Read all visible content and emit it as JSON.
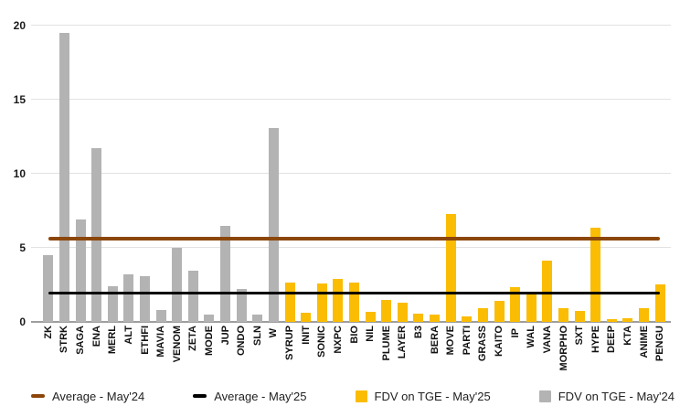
{
  "chart_data": {
    "type": "bar",
    "title": "",
    "xlabel": "",
    "ylabel": "",
    "ylim": [
      0,
      20
    ],
    "yticks": [
      0,
      5,
      10,
      15,
      20
    ],
    "grid": true,
    "legend_position": "bottom",
    "categories": [
      "ZK",
      "STRK",
      "SAGA",
      "ENA",
      "MERL",
      "ALT",
      "ETHFI",
      "MAVIA",
      "VENOM",
      "ZETA",
      "MODE",
      "JUP",
      "ONDO",
      "SLN",
      "W",
      "SYRUP",
      "INIT",
      "SONIC",
      "NXPC",
      "BIO",
      "NIL",
      "PLUME",
      "LAYER",
      "B3",
      "BERA",
      "MOVE",
      "PARTI",
      "GRASS",
      "KAITO",
      "IP",
      "WAL",
      "VANA",
      "MORPHO",
      "SXT",
      "HYPE",
      "DEEP",
      "KTA",
      "ANIME",
      "PENGU"
    ],
    "series": [
      {
        "name": "FDV on TGE - May'24",
        "color": "#B3B3B3",
        "values": [
          4.5,
          19.5,
          6.9,
          11.7,
          2.4,
          3.2,
          3.1,
          0.8,
          5.0,
          3.45,
          0.5,
          6.5,
          2.2,
          0.5,
          13.1,
          null,
          null,
          null,
          null,
          null,
          null,
          null,
          null,
          null,
          null,
          null,
          null,
          null,
          null,
          null,
          null,
          null,
          null,
          null,
          null,
          null,
          null,
          null,
          null
        ]
      },
      {
        "name": "FDV on TGE - May'25",
        "color": "#FBBC04",
        "values": [
          null,
          null,
          null,
          null,
          null,
          null,
          null,
          null,
          null,
          null,
          null,
          null,
          null,
          null,
          null,
          2.65,
          0.6,
          2.55,
          2.9,
          2.65,
          0.65,
          1.5,
          1.3,
          0.55,
          0.5,
          7.3,
          0.35,
          0.9,
          1.4,
          2.35,
          1.9,
          4.1,
          0.9,
          0.75,
          6.35,
          0.2,
          0.25,
          0.9,
          2.5
        ]
      }
    ],
    "avg_lines": [
      {
        "name": "Average - May'24",
        "color": "#8C460A",
        "value": 5.6,
        "thickness": 4
      },
      {
        "name": "Average - May'25",
        "color": "#000000",
        "value": 1.95,
        "thickness": 3
      }
    ],
    "legend": [
      {
        "label": "Average - May'24",
        "swatch": "line",
        "color": "#8C460A"
      },
      {
        "label": "Average - May'25",
        "swatch": "line",
        "color": "#000000"
      },
      {
        "label": "FDV on TGE - May'25",
        "swatch": "square",
        "color": "#FBBC04"
      },
      {
        "label": "FDV on TGE - May'24",
        "swatch": "square",
        "color": "#B3B3B3"
      }
    ],
    "colors": {
      "gridline": "#E2E2E2",
      "axis_line": "#9E9E9E",
      "tick_label": "#1A1A1A",
      "background": "#FFFFFF"
    }
  }
}
